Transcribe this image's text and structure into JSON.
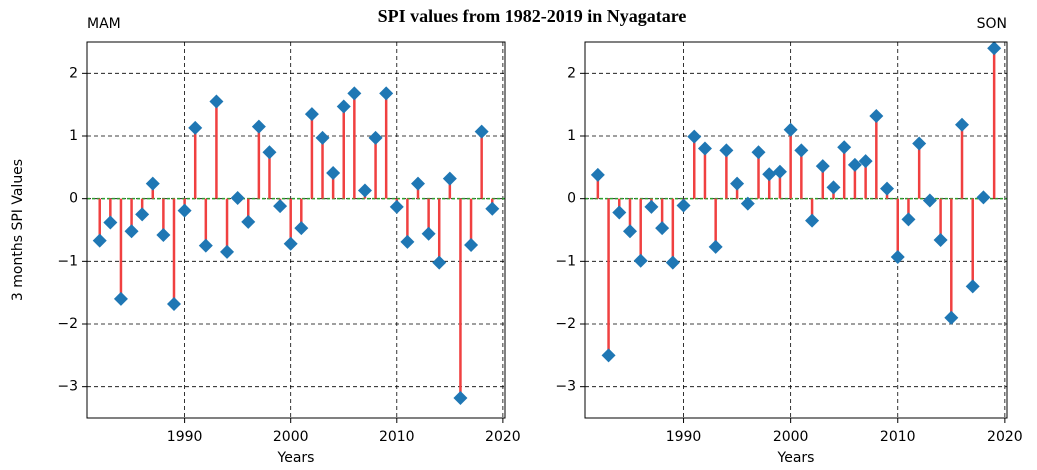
{
  "title": "SPI values from 1982-2019 in Nyagatare",
  "chart_data": [
    {
      "type": "stem",
      "title": "MAM",
      "title_loc": "left",
      "xlabel": "Years",
      "ylabel": "3 months SPI Values",
      "x": [
        1982,
        1983,
        1984,
        1985,
        1986,
        1987,
        1988,
        1989,
        1990,
        1991,
        1992,
        1993,
        1994,
        1995,
        1996,
        1997,
        1998,
        1999,
        2000,
        2001,
        2002,
        2003,
        2004,
        2005,
        2006,
        2007,
        2008,
        2009,
        2010,
        2011,
        2012,
        2013,
        2014,
        2015,
        2016,
        2017,
        2018,
        2019
      ],
      "values": [
        -0.67,
        -0.38,
        -1.6,
        -0.52,
        -0.25,
        0.24,
        -0.58,
        -1.68,
        -0.19,
        1.13,
        -0.75,
        1.55,
        -0.85,
        0.01,
        -0.37,
        1.15,
        0.74,
        -0.12,
        -0.72,
        -0.47,
        1.35,
        0.97,
        0.41,
        1.47,
        1.68,
        0.13,
        0.97,
        1.68,
        -0.13,
        -0.69,
        0.24,
        -0.56,
        -1.02,
        0.32,
        -3.18,
        -0.74,
        1.07,
        -0.16
      ],
      "stem_color": "#f04040",
      "marker_color": "#1f77b4",
      "baseline_color": "#2ca02c",
      "xlim": [
        1980.8,
        2020.2
      ],
      "ylim": [
        -3.5,
        2.5
      ],
      "xticks": [
        1990,
        2000,
        2010,
        2020
      ],
      "yticks": [
        {
          "value": -3,
          "label": "−3"
        },
        {
          "value": -2,
          "label": "−2"
        },
        {
          "value": -1,
          "label": "−1"
        },
        0,
        1,
        2
      ],
      "grid": true
    },
    {
      "type": "stem",
      "title": "SON",
      "title_loc": "right",
      "xlabel": "Years",
      "x": [
        1982,
        1983,
        1984,
        1985,
        1986,
        1987,
        1988,
        1989,
        1990,
        1991,
        1992,
        1993,
        1994,
        1995,
        1996,
        1997,
        1998,
        1999,
        2000,
        2001,
        2002,
        2003,
        2004,
        2005,
        2006,
        2007,
        2008,
        2009,
        2010,
        2011,
        2012,
        2013,
        2014,
        2015,
        2016,
        2017,
        2018,
        2019
      ],
      "values": [
        0.38,
        -2.5,
        -0.22,
        -0.52,
        -0.99,
        -0.13,
        -0.47,
        -1.02,
        -0.11,
        0.99,
        0.8,
        -0.77,
        0.77,
        0.24,
        -0.08,
        0.74,
        0.39,
        0.43,
        1.1,
        0.77,
        -0.35,
        0.52,
        0.18,
        0.82,
        0.54,
        0.6,
        1.32,
        0.16,
        -0.93,
        -0.33,
        0.88,
        -0.03,
        -0.66,
        -1.9,
        1.18,
        -1.4,
        0.02,
        2.4
      ],
      "stem_color": "#f04040",
      "marker_color": "#1f77b4",
      "baseline_color": "#2ca02c",
      "xlim": [
        1980.8,
        2020.2
      ],
      "ylim": [
        -3.5,
        2.5
      ],
      "xticks": [
        1990,
        2000,
        2010,
        2020
      ],
      "yticks": [
        {
          "value": -3,
          "label": "−3"
        },
        {
          "value": -2,
          "label": "−2"
        },
        {
          "value": -1,
          "label": "−1"
        },
        0,
        1,
        2
      ],
      "grid": true
    }
  ]
}
